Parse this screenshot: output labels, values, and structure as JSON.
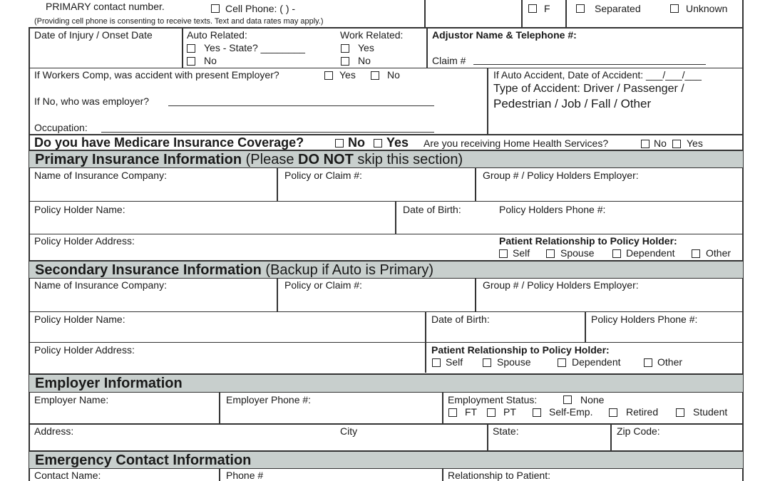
{
  "contact": {
    "primary_label": "PRIMARY contact number.",
    "cell_label": "Cell Phone:  (        )        -",
    "note": "(Providing cell phone is consenting to receive texts. Text and data rates may apply.)",
    "sex_f": "F",
    "marital_separated": "Separated",
    "marital_unknown": "Unknown"
  },
  "injury": {
    "date_label": "Date of Injury / Onset Date",
    "auto_label": "Auto Related:",
    "auto_yes": "Yes - State? ________",
    "auto_no": "No",
    "work_label": "Work Related:",
    "work_yes": "Yes",
    "work_no": "No",
    "adjustor_label": "Adjustor Name & Telephone #:",
    "claim_label": "Claim #"
  },
  "workers": {
    "question": "If Workers Comp, was accident with present Employer?",
    "yes": "Yes",
    "no": "No",
    "employer_q": "If No, who was employer?",
    "occupation": "Occupation:",
    "auto_date": "If Auto Accident, Date of Accident: ___/___/___",
    "type_line1": "Type of Accident: Driver  / Passenger  /",
    "type_line2": "Pedestrian  / Job  / Fall  / Other"
  },
  "medicare": {
    "question": "Do you have Medicare Insurance Coverage?",
    "no": "No",
    "yes": "Yes",
    "home_health": "Are you receiving Home Health Services?",
    "hh_no": "No",
    "hh_yes": "Yes"
  },
  "primary": {
    "title": "Primary Insurance Information",
    "sub_a": " (Please ",
    "sub_b": "DO NOT",
    "sub_c": " skip this section)",
    "company": "Name of Insurance Company:",
    "policy": "Policy or Claim #:",
    "group": "Group # / Policy Holders Employer:",
    "holder": "Policy Holder Name:",
    "dob": "Date of Birth:",
    "phone": "Policy Holders Phone #:",
    "address": "Policy Holder Address:",
    "relationship": "Patient Relationship to Policy Holder:",
    "rel": [
      "Self",
      "Spouse",
      "Dependent",
      "Other"
    ]
  },
  "secondary": {
    "title": "Secondary Insurance Information",
    "sub": " (Backup if Auto is Primary)",
    "company": "Name of Insurance Company:",
    "policy": "Policy or Claim #:",
    "group": "Group # / Policy Holders Employer:",
    "holder": "Policy Holder Name:",
    "dob": "Date of Birth:",
    "phone": "Policy Holders Phone #:",
    "address": "Policy Holder Address:",
    "relationship": "Patient Relationship to Policy Holder:",
    "rel": [
      "Self",
      "Spouse",
      "Dependent",
      "Other"
    ]
  },
  "employer": {
    "title": "Employer Information",
    "name": "Employer Name:",
    "phone": "Employer Phone #:",
    "status": "Employment Status:",
    "status_opts": [
      "None",
      "FT",
      "PT",
      "Self-Emp.",
      "Retired",
      "Student"
    ],
    "address": "Address:",
    "city": "City",
    "state": "State:",
    "zip": "Zip Code:"
  },
  "emergency": {
    "title": "Emergency Contact Information",
    "name": "Contact Name:",
    "phone": "Phone #",
    "relationship": "Relationship to Patient:"
  }
}
